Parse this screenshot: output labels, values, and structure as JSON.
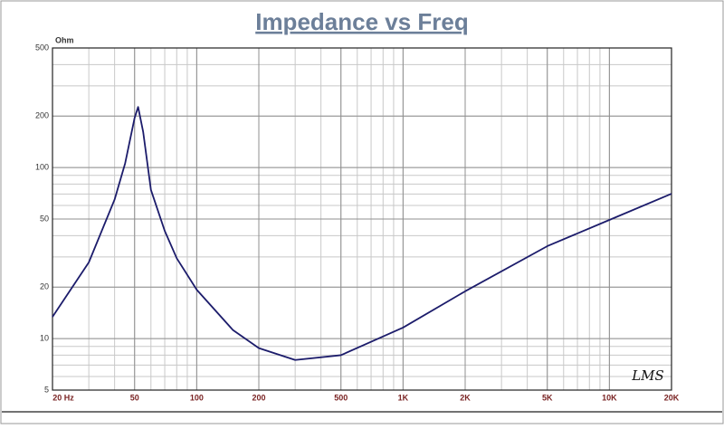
{
  "chart_data": {
    "type": "line",
    "title": "Impedance vs Freq",
    "y_unit": "Ohm",
    "logo": "LMS",
    "x": [
      20,
      30,
      40,
      45,
      50,
      52,
      55,
      60,
      70,
      80,
      100,
      150,
      200,
      300,
      500,
      1000,
      2000,
      5000,
      10000,
      20000
    ],
    "series": [
      {
        "color": "#1c1c6b",
        "values": [
          13.4,
          27.9,
          65,
          106,
          195,
          226,
          162,
          74,
          42.6,
          29.5,
          19.3,
          11.2,
          8.8,
          7.5,
          8.0,
          11.6,
          18.9,
          34.7,
          49.4,
          70.3
        ]
      }
    ],
    "xlim": [
      20,
      20000
    ],
    "ylim": [
      5,
      500
    ],
    "x_log": true,
    "y_log": true,
    "grid": true,
    "xticks": [
      {
        "value": 20,
        "label": "20  Hz"
      },
      50,
      100,
      200,
      500,
      {
        "value": 1000,
        "label": "1K"
      },
      {
        "value": 2000,
        "label": "2K"
      },
      {
        "value": 5000,
        "label": "5K"
      },
      {
        "value": 10000,
        "label": "10K"
      },
      {
        "value": 20000,
        "label": "20K"
      }
    ],
    "yticks": [
      5,
      10,
      20,
      50,
      100,
      200,
      500
    ]
  }
}
